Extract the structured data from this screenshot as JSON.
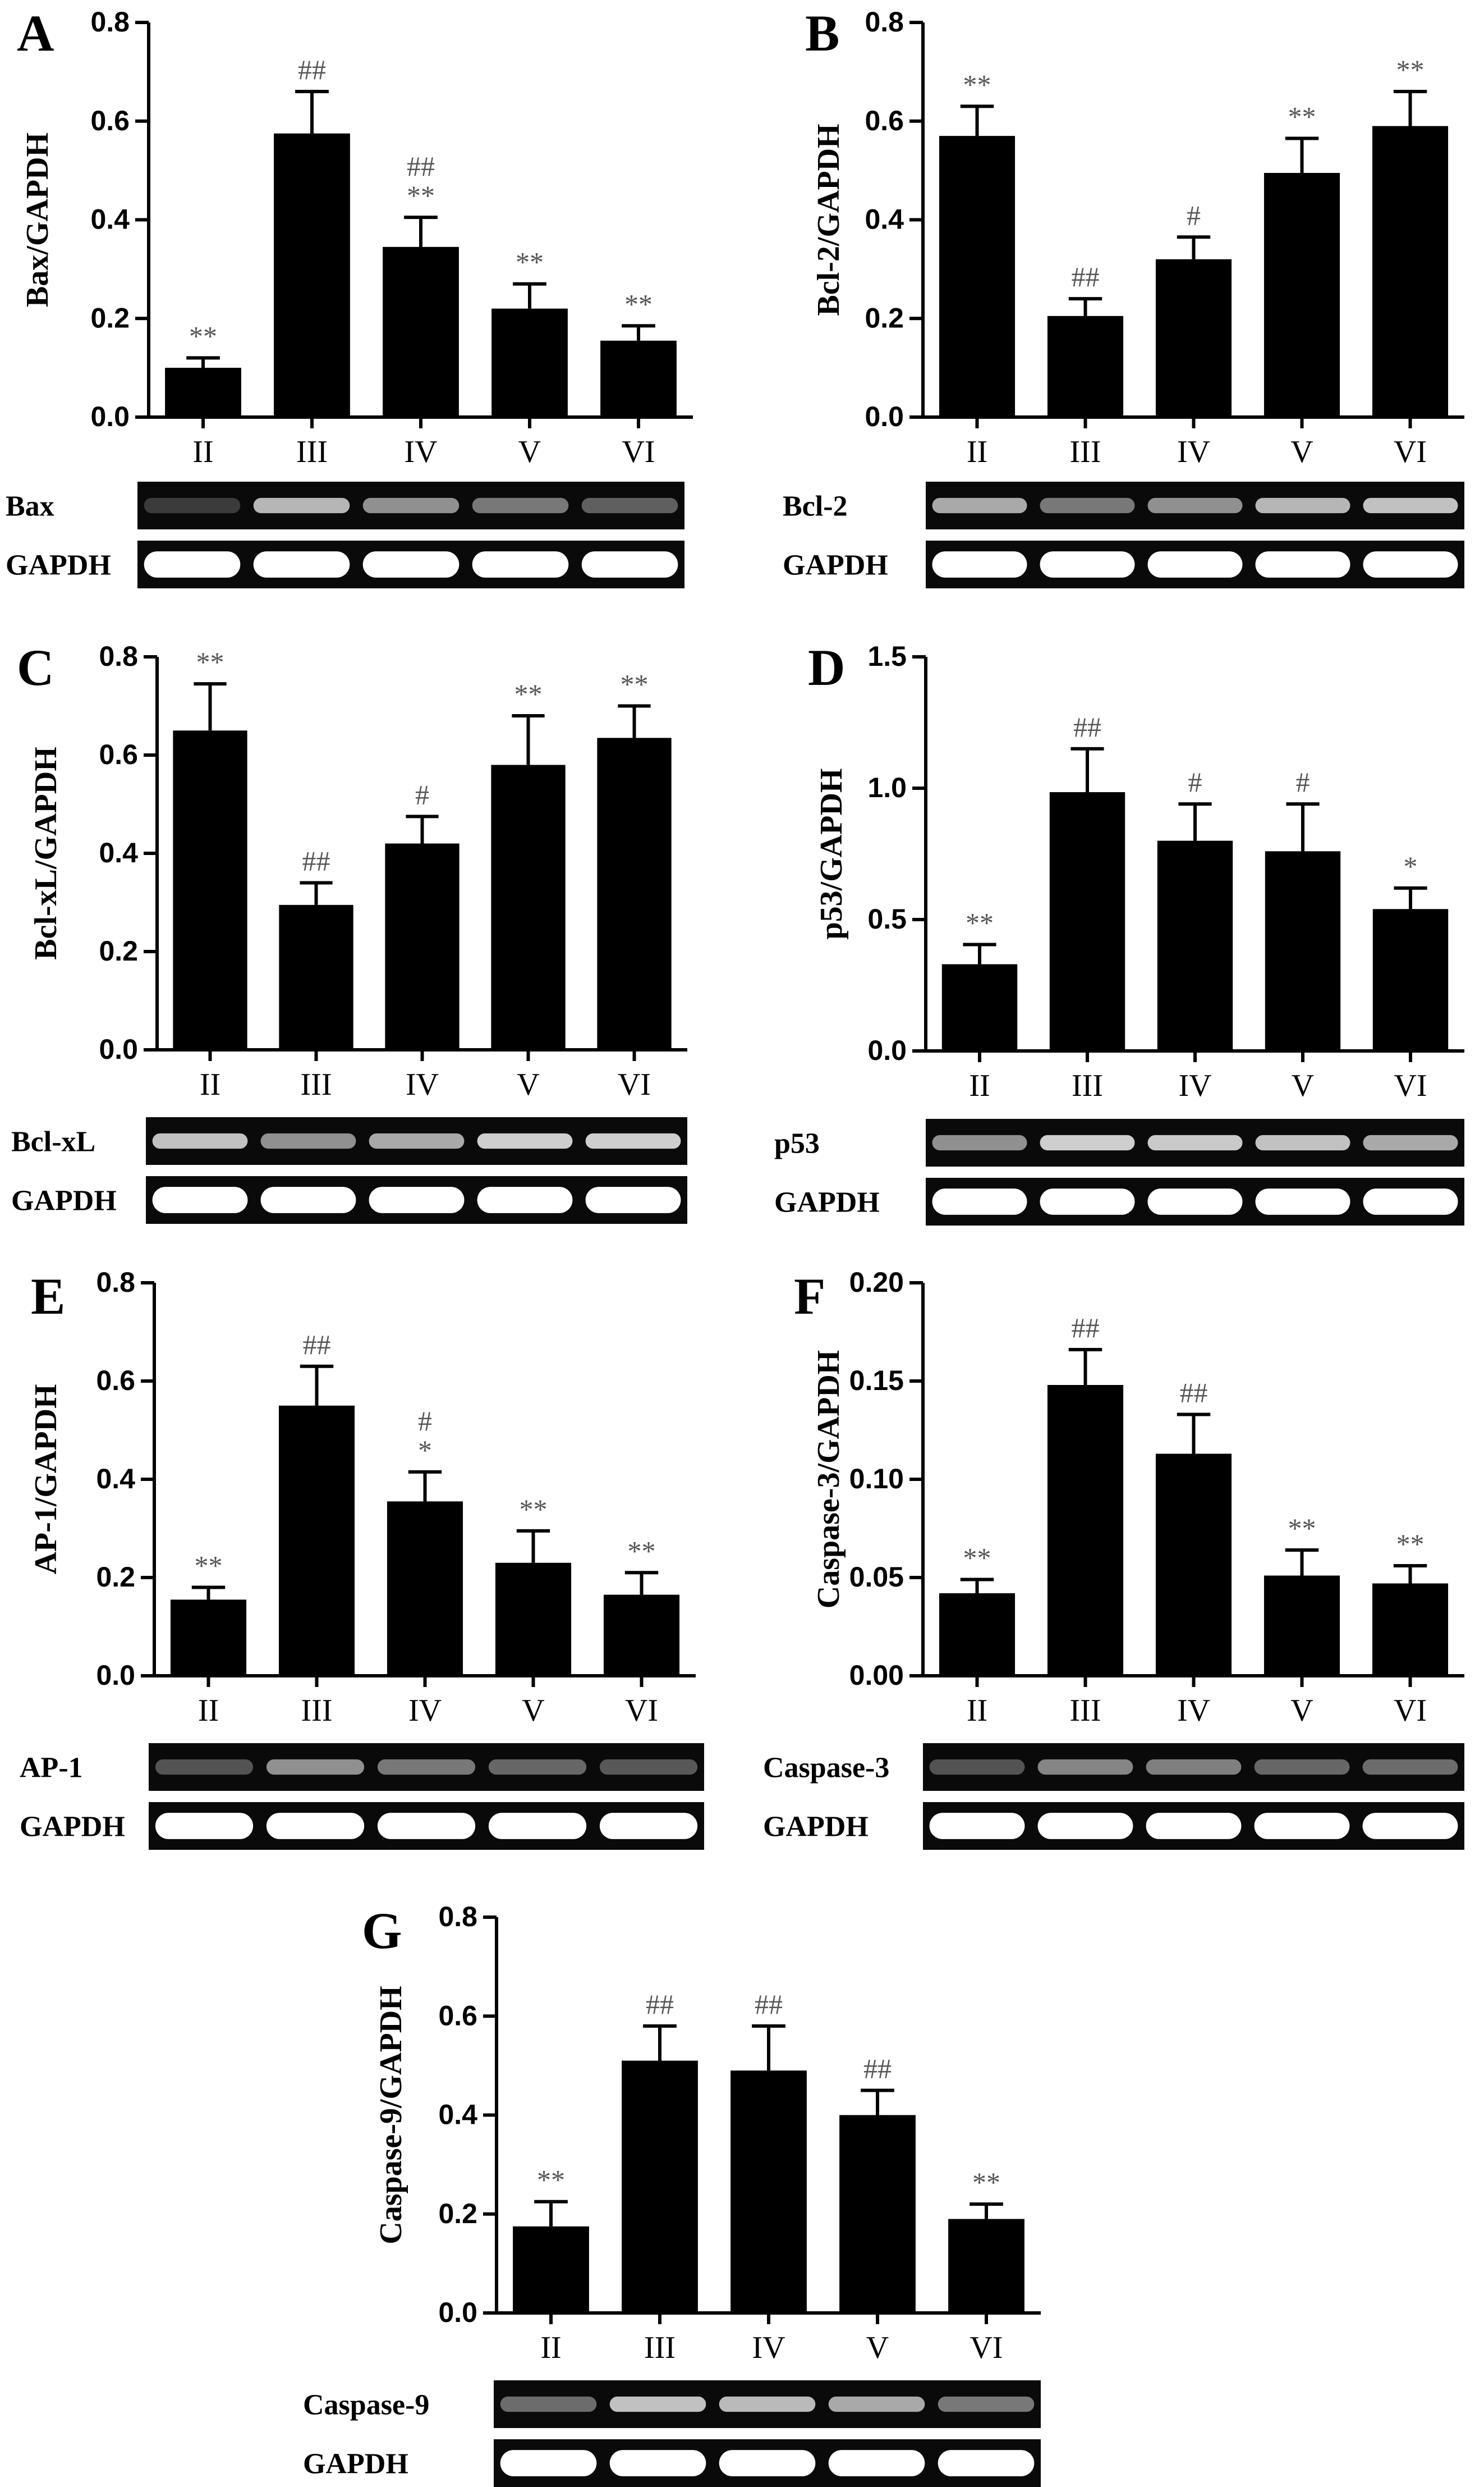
{
  "figure": {
    "groups": [
      "II",
      "III",
      "IV",
      "V",
      "VI"
    ],
    "bar_color": "#000000",
    "annotation_color": "#555555",
    "blot_background": "#0a0a0a",
    "blot_band_color": "#ffffff",
    "loading_control_label": "GAPDH"
  },
  "chart_data": [
    {
      "panel": "A",
      "type": "bar",
      "ylabel": "Bax/GAPDH",
      "ylim": [
        0,
        0.8
      ],
      "yticks": [
        "0.0",
        "0.2",
        "0.4",
        "0.6",
        "0.8"
      ],
      "categories": [
        "II",
        "III",
        "IV",
        "V",
        "VI"
      ],
      "values": [
        0.1,
        0.575,
        0.345,
        0.22,
        0.155
      ],
      "errors": [
        0.02,
        0.085,
        0.06,
        0.05,
        0.03
      ],
      "annotations": [
        [
          "**"
        ],
        [
          "##"
        ],
        [
          "##",
          "**"
        ],
        [
          "**"
        ],
        [
          "**"
        ]
      ],
      "blot": {
        "protein": "Bax",
        "band_intensity": [
          0.2,
          0.7,
          0.55,
          0.45,
          0.35
        ]
      }
    },
    {
      "panel": "B",
      "type": "bar",
      "ylabel": "Bcl-2/GAPDH",
      "ylim": [
        0,
        0.8
      ],
      "yticks": [
        "0.0",
        "0.2",
        "0.4",
        "0.6",
        "0.8"
      ],
      "categories": [
        "II",
        "III",
        "IV",
        "V",
        "VI"
      ],
      "values": [
        0.57,
        0.205,
        0.32,
        0.495,
        0.59
      ],
      "errors": [
        0.06,
        0.035,
        0.045,
        0.07,
        0.07
      ],
      "annotations": [
        [
          "**"
        ],
        [
          "##"
        ],
        [
          "#"
        ],
        [
          "**"
        ],
        [
          "**"
        ]
      ],
      "blot": {
        "protein": "Bcl-2",
        "band_intensity": [
          0.65,
          0.45,
          0.55,
          0.7,
          0.75
        ]
      }
    },
    {
      "panel": "C",
      "type": "bar",
      "ylabel": "Bcl-xL/GAPDH",
      "ylim": [
        0,
        0.8
      ],
      "yticks": [
        "0.0",
        "0.2",
        "0.4",
        "0.6",
        "0.8"
      ],
      "categories": [
        "II",
        "III",
        "IV",
        "V",
        "VI"
      ],
      "values": [
        0.65,
        0.295,
        0.42,
        0.58,
        0.635
      ],
      "errors": [
        0.095,
        0.045,
        0.055,
        0.1,
        0.065
      ],
      "annotations": [
        [
          "**"
        ],
        [
          "##"
        ],
        [
          "#"
        ],
        [
          "**"
        ],
        [
          "**"
        ]
      ],
      "blot": {
        "protein": "Bcl-xL",
        "band_intensity": [
          0.75,
          0.55,
          0.65,
          0.8,
          0.8
        ]
      }
    },
    {
      "panel": "D",
      "type": "bar",
      "ylabel": "p53/GAPDH",
      "ylim": [
        0,
        1.5
      ],
      "yticks": [
        "0.0",
        "0.5",
        "1.0",
        "1.5"
      ],
      "categories": [
        "II",
        "III",
        "IV",
        "V",
        "VI"
      ],
      "values": [
        0.33,
        0.985,
        0.8,
        0.76,
        0.54
      ],
      "errors": [
        0.075,
        0.165,
        0.14,
        0.18,
        0.08
      ],
      "annotations": [
        [
          "**"
        ],
        [
          "##"
        ],
        [
          "#"
        ],
        [
          "#"
        ],
        [
          "*"
        ]
      ],
      "blot": {
        "protein": "p53",
        "band_intensity": [
          0.55,
          0.8,
          0.78,
          0.75,
          0.65
        ]
      }
    },
    {
      "panel": "E",
      "type": "bar",
      "ylabel": "AP-1/GAPDH",
      "ylim": [
        0,
        0.8
      ],
      "yticks": [
        "0.0",
        "0.2",
        "0.4",
        "0.6",
        "0.8"
      ],
      "categories": [
        "II",
        "III",
        "IV",
        "V",
        "VI"
      ],
      "values": [
        0.155,
        0.55,
        0.355,
        0.23,
        0.165
      ],
      "errors": [
        0.025,
        0.08,
        0.06,
        0.065,
        0.045
      ],
      "annotations": [
        [
          "**"
        ],
        [
          "##"
        ],
        [
          "#",
          "*"
        ],
        [
          "**"
        ],
        [
          "**"
        ]
      ],
      "blot": {
        "protein": "AP-1",
        "band_intensity": [
          0.3,
          0.55,
          0.45,
          0.38,
          0.32
        ]
      }
    },
    {
      "panel": "F",
      "type": "bar",
      "ylabel": "Caspase-3/GAPDH",
      "ylim": [
        0,
        0.2
      ],
      "yticks": [
        "0.00",
        "0.05",
        "0.10",
        "0.15",
        "0.20"
      ],
      "categories": [
        "II",
        "III",
        "IV",
        "V",
        "VI"
      ],
      "values": [
        0.042,
        0.148,
        0.113,
        0.051,
        0.047
      ],
      "errors": [
        0.007,
        0.018,
        0.02,
        0.013,
        0.009
      ],
      "annotations": [
        [
          "**"
        ],
        [
          "##"
        ],
        [
          "##"
        ],
        [
          "**"
        ],
        [
          "**"
        ]
      ],
      "blot": {
        "protein": "Caspase-3",
        "band_intensity": [
          0.3,
          0.5,
          0.48,
          0.38,
          0.4
        ]
      }
    },
    {
      "panel": "G",
      "type": "bar",
      "ylabel": "Caspase-9/GAPDH",
      "ylim": [
        0,
        0.8
      ],
      "yticks": [
        "0.0",
        "0.2",
        "0.4",
        "0.6",
        "0.8"
      ],
      "categories": [
        "II",
        "III",
        "IV",
        "V",
        "VI"
      ],
      "values": [
        0.175,
        0.51,
        0.49,
        0.4,
        0.19
      ],
      "errors": [
        0.05,
        0.07,
        0.09,
        0.05,
        0.03
      ],
      "annotations": [
        [
          "**"
        ],
        [
          "##"
        ],
        [
          "##"
        ],
        [
          "##"
        ],
        [
          "**"
        ]
      ],
      "blot": {
        "protein": "Caspase-9",
        "band_intensity": [
          0.4,
          0.75,
          0.72,
          0.65,
          0.45
        ]
      }
    }
  ]
}
